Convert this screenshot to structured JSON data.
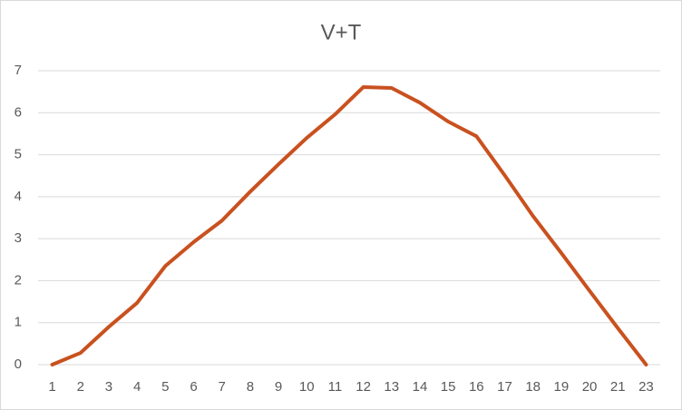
{
  "chart_data": {
    "type": "line",
    "title": "V+T",
    "categories": [
      "1",
      "2",
      "3",
      "4",
      "5",
      "6",
      "7",
      "8",
      "9",
      "10",
      "11",
      "12",
      "13",
      "14",
      "15",
      "16",
      "17",
      "18",
      "19",
      "20",
      "21",
      "23"
    ],
    "series": [
      {
        "name": "V+T",
        "color": "#c9511f",
        "values": [
          0,
          0.28,
          0.9,
          1.47,
          2.35,
          2.92,
          3.43,
          4.12,
          4.77,
          5.4,
          5.96,
          6.61,
          6.59,
          6.24,
          5.79,
          5.44,
          4.51,
          3.54,
          2.66,
          1.76,
          0.87,
          0
        ]
      }
    ],
    "ylim": [
      0,
      7
    ],
    "yticks": [
      0,
      1,
      2,
      3,
      4,
      5,
      6,
      7
    ],
    "grid": true,
    "legend": false
  }
}
